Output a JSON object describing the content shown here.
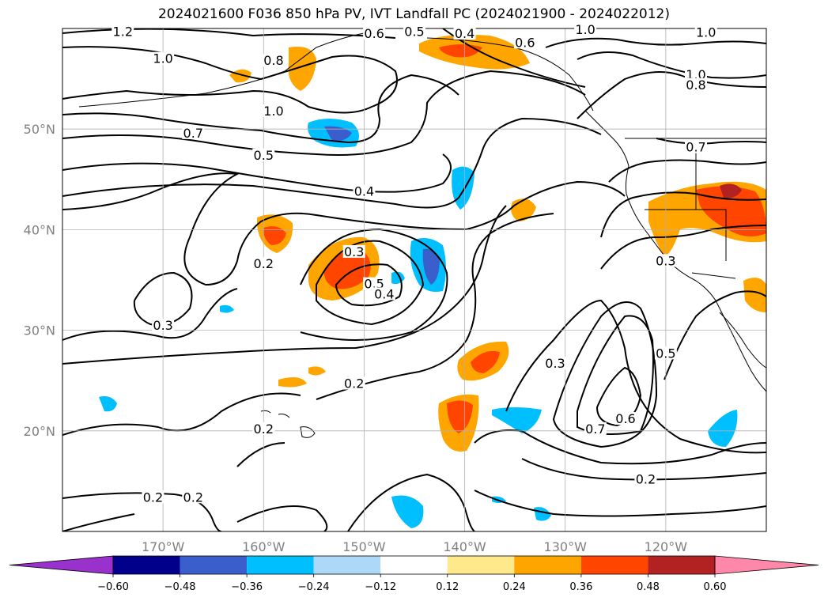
{
  "title": "2024021600 F036 850 hPa PV, IVT Landfall PC (2024021900 - 2024022012)",
  "chart_data": {
    "type": "map-contour",
    "title": "2024021600 F036 850 hPa PV, IVT Landfall PC (2024021900 - 2024022012)",
    "lon_range": [
      -180,
      -110
    ],
    "lat_range": [
      10,
      60
    ],
    "lon_ticks": [
      {
        "value": -170,
        "label": "170°W"
      },
      {
        "value": -160,
        "label": "160°W"
      },
      {
        "value": -150,
        "label": "150°W"
      },
      {
        "value": -140,
        "label": "140°W"
      },
      {
        "value": -130,
        "label": "130°W"
      },
      {
        "value": -120,
        "label": "120°W"
      }
    ],
    "lat_ticks": [
      {
        "value": 20,
        "label": "20°N"
      },
      {
        "value": 30,
        "label": "30°N"
      },
      {
        "value": 40,
        "label": "40°N"
      },
      {
        "value": 50,
        "label": "50°N"
      }
    ],
    "grid": true,
    "colorbar": {
      "orientation": "horizontal",
      "levels": [
        -0.6,
        -0.48,
        -0.36,
        -0.24,
        -0.12,
        0.12,
        0.24,
        0.36,
        0.48,
        0.6
      ],
      "tick_labels": [
        "−0.60",
        "−0.48",
        "−0.36",
        "−0.24",
        "−0.12",
        "0.12",
        "0.24",
        "0.36",
        "0.48",
        "0.60"
      ],
      "colors": [
        "#9932cc",
        "#00008b",
        "#3a5fcd",
        "#00bfff",
        "#add8f7",
        "#ffffff",
        "#ffe98a",
        "#ffa500",
        "#ff4500",
        "#b22222",
        "#ff88aa"
      ],
      "extend": "both"
    },
    "contour_labels": [
      {
        "text": "1.2",
        "lon": -174,
        "lat": 59.5
      },
      {
        "text": "1.0",
        "lon": -170,
        "lat": 56.8
      },
      {
        "text": "0.8",
        "lon": -159,
        "lat": 56.6
      },
      {
        "text": "0.6",
        "lon": -149,
        "lat": 59.3
      },
      {
        "text": "0.5",
        "lon": -145,
        "lat": 59.5
      },
      {
        "text": "0.4",
        "lon": -140,
        "lat": 59.3
      },
      {
        "text": "0.6",
        "lon": -134,
        "lat": 58.4
      },
      {
        "text": "1.0",
        "lon": -128,
        "lat": 59.7
      },
      {
        "text": "1.0",
        "lon": -116,
        "lat": 59.4
      },
      {
        "text": "1.0",
        "lon": -117,
        "lat": 55.2
      },
      {
        "text": "0.8",
        "lon": -117,
        "lat": 54.2
      },
      {
        "text": "1.0",
        "lon": -159,
        "lat": 51.6
      },
      {
        "text": "0.7",
        "lon": -167,
        "lat": 49.4
      },
      {
        "text": "0.5",
        "lon": -160,
        "lat": 47.2
      },
      {
        "text": "0.4",
        "lon": -150,
        "lat": 43.6
      },
      {
        "text": "0.7",
        "lon": -117,
        "lat": 48.0
      },
      {
        "text": "0.3",
        "lon": -151,
        "lat": 37.6
      },
      {
        "text": "0.2",
        "lon": -160,
        "lat": 36.4
      },
      {
        "text": "0.5",
        "lon": -149,
        "lat": 34.4
      },
      {
        "text": "0.4",
        "lon": -148,
        "lat": 33.4
      },
      {
        "text": "0.3",
        "lon": -120,
        "lat": 36.7
      },
      {
        "text": "0.3",
        "lon": -170,
        "lat": 30.3
      },
      {
        "text": "0.3",
        "lon": -131,
        "lat": 26.5
      },
      {
        "text": "0.5",
        "lon": -120,
        "lat": 27.5
      },
      {
        "text": "0.2",
        "lon": -151,
        "lat": 24.5
      },
      {
        "text": "0.2",
        "lon": -160,
        "lat": 20.0
      },
      {
        "text": "0.7",
        "lon": -127,
        "lat": 20.0
      },
      {
        "text": "0.6",
        "lon": -124,
        "lat": 21.0
      },
      {
        "text": "0.2",
        "lon": -171,
        "lat": 13.2
      },
      {
        "text": "0.2",
        "lon": -167,
        "lat": 13.2
      },
      {
        "text": "0.2",
        "lon": -122,
        "lat": 15.0
      }
    ]
  }
}
